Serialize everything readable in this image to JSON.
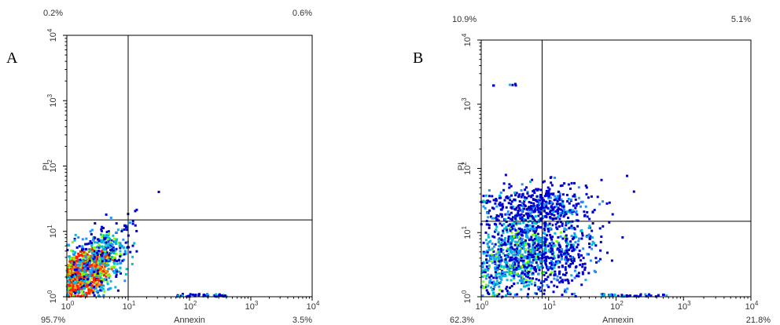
{
  "chart_data": [
    {
      "type": "scatter",
      "panel_label": "A",
      "xlabel": "Annexin",
      "ylabel": "PI",
      "x_scale": "log",
      "y_scale": "log",
      "xlim": [
        1,
        10000
      ],
      "ylim": [
        1,
        10000
      ],
      "x_ticks": [
        "10^0",
        "10^1",
        "10^2",
        "10^3",
        "10^4"
      ],
      "y_ticks": [
        "10^0",
        "10^1",
        "10^2",
        "10^3",
        "10^4"
      ],
      "quadrant_gates": {
        "x": 10,
        "y": 15
      },
      "quadrant_percentages": {
        "upper_left": "0.2%",
        "upper_right": "0.6%",
        "lower_left": "95.7%",
        "lower_right": "3.5%"
      },
      "density_clusters": [
        {
          "x_center": 1.8,
          "y_center": 2.2,
          "spread_x": 0.33,
          "spread_y": 0.28,
          "corr": 0.55,
          "n": 1300,
          "level": "high"
        },
        {
          "x_center": 4.0,
          "y_center": 5.0,
          "spread_x": 0.22,
          "spread_y": 0.22,
          "corr": 0.6,
          "n": 160,
          "level": "medium"
        }
      ],
      "axis_events": [
        {
          "x_range": [
            60,
            420
          ],
          "y": 1.05,
          "n": 45
        },
        {
          "x_range": [
            8,
            15
          ],
          "y": 12,
          "n": 4
        },
        {
          "x_range": [
            28,
            32
          ],
          "y": 40,
          "n": 1
        }
      ],
      "grid": false
    },
    {
      "type": "scatter",
      "panel_label": "B",
      "xlabel": "Annexin",
      "ylabel": "PI",
      "x_scale": "log",
      "y_scale": "log",
      "xlim": [
        1,
        10000
      ],
      "ylim": [
        1,
        10000
      ],
      "x_ticks": [
        "10^0",
        "10^1",
        "10^2",
        "10^3",
        "10^4"
      ],
      "y_ticks": [
        "10^0",
        "10^1",
        "10^2",
        "10^3",
        "10^4"
      ],
      "quadrant_gates": {
        "x": 8,
        "y": 15
      },
      "quadrant_percentages": {
        "upper_left": "10.9%",
        "upper_right": "5.1%",
        "lower_left": "62.3%",
        "lower_right": "21.8%"
      },
      "density_clusters": [
        {
          "x_center": 3.5,
          "y_center": 4.5,
          "spread_x": 0.45,
          "spread_y": 0.38,
          "corr": 0.45,
          "n": 1100,
          "level": "medium"
        },
        {
          "x_center": 6.0,
          "y_center": 25,
          "spread_x": 0.4,
          "spread_y": 0.18,
          "corr": 0.1,
          "n": 420,
          "level": "low"
        },
        {
          "x_center": 14,
          "y_center": 4.0,
          "spread_x": 0.35,
          "spread_y": 0.35,
          "corr": 0.2,
          "n": 300,
          "level": "low"
        }
      ],
      "axis_events": [
        {
          "x_range": [
            1,
            3.5
          ],
          "y": 2000,
          "n": 6
        },
        {
          "x_range": [
            1,
            1.3
          ],
          "y": 30,
          "n": 10
        },
        {
          "x_range": [
            60,
            600
          ],
          "y": 1.05,
          "n": 40
        }
      ],
      "grid": false
    }
  ],
  "colors": {
    "density_low": "#0000cc",
    "density_mid": "#00bcd4",
    "density_midhigh": "#7fff00",
    "density_high": "#ff2000",
    "axis": "#000000",
    "text": "#333333"
  }
}
